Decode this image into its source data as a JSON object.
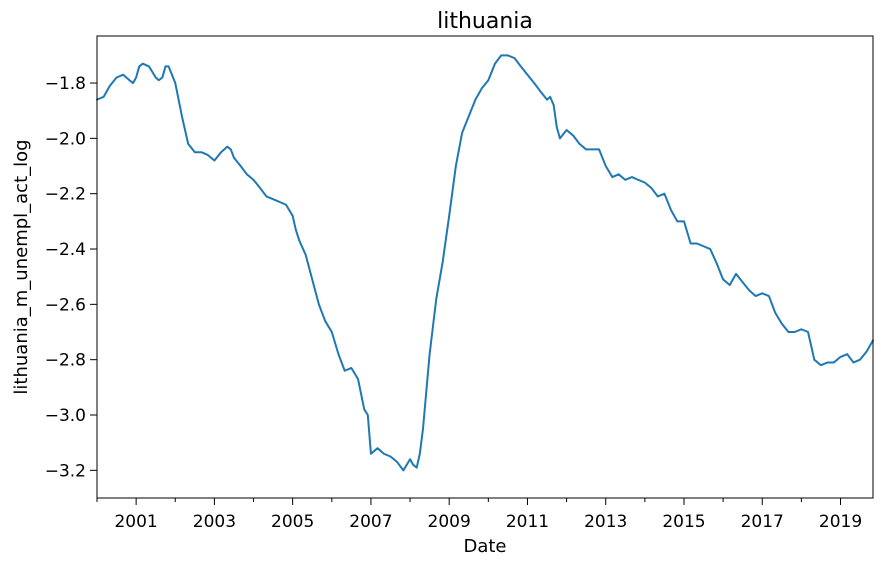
{
  "chart_data": {
    "type": "line",
    "title": "lithuania",
    "xlabel": "Date",
    "ylabel": "lithuania_m_unempl_act_log",
    "xlim": [
      2000.0,
      2019.83
    ],
    "ylim": [
      -3.3,
      -1.63
    ],
    "x_major_ticks": [
      2001,
      2003,
      2005,
      2007,
      2009,
      2011,
      2013,
      2015,
      2017,
      2019
    ],
    "x_minor_ticks": [
      2000,
      2002,
      2004,
      2006,
      2008,
      2010,
      2012,
      2014,
      2016,
      2018
    ],
    "x_tick_labels": [
      "2001",
      "2003",
      "2005",
      "2007",
      "2009",
      "2011",
      "2013",
      "2015",
      "2017",
      "2019"
    ],
    "y_ticks": [
      -3.2,
      -3.0,
      -2.8,
      -2.6,
      -2.4,
      -2.2,
      -2.0,
      -1.8
    ],
    "y_tick_labels": [
      "−3.2",
      "−3.0",
      "−2.8",
      "−2.6",
      "−2.4",
      "−2.2",
      "−2.0",
      "−1.8"
    ],
    "grid": false,
    "line_color": "#1f77b4",
    "series": [
      {
        "x": [
          2000.0,
          2000.17,
          2000.33,
          2000.5,
          2000.67,
          2000.83,
          2000.92,
          2001.0,
          2001.08,
          2001.17,
          2001.33,
          2001.5,
          2001.58,
          2001.67,
          2001.75,
          2001.83,
          2002.0,
          2002.17,
          2002.33,
          2002.5,
          2002.67,
          2002.83,
          2003.0,
          2003.17,
          2003.33,
          2003.42,
          2003.5,
          2003.67,
          2003.83,
          2004.0,
          2004.17,
          2004.33,
          2004.5,
          2004.67,
          2004.83,
          2005.0,
          2005.08,
          2005.17,
          2005.33,
          2005.5,
          2005.67,
          2005.83,
          2006.0,
          2006.17,
          2006.33,
          2006.5,
          2006.67,
          2006.83,
          2006.92,
          2007.0,
          2007.17,
          2007.33,
          2007.5,
          2007.67,
          2007.83,
          2008.0,
          2008.08,
          2008.17,
          2008.25,
          2008.33,
          2008.5,
          2008.67,
          2008.83,
          2009.0,
          2009.17,
          2009.33,
          2009.5,
          2009.67,
          2009.83,
          2010.0,
          2010.17,
          2010.33,
          2010.5,
          2010.67,
          2010.83,
          2011.0,
          2011.17,
          2011.33,
          2011.5,
          2011.58,
          2011.67,
          2011.75,
          2011.83,
          2012.0,
          2012.17,
          2012.33,
          2012.5,
          2012.67,
          2012.83,
          2013.0,
          2013.17,
          2013.33,
          2013.5,
          2013.67,
          2013.83,
          2014.0,
          2014.17,
          2014.33,
          2014.5,
          2014.67,
          2014.83,
          2015.0,
          2015.17,
          2015.33,
          2015.5,
          2015.67,
          2015.83,
          2016.0,
          2016.17,
          2016.33,
          2016.5,
          2016.67,
          2016.83,
          2017.0,
          2017.17,
          2017.33,
          2017.5,
          2017.67,
          2017.83,
          2018.0,
          2018.17,
          2018.33,
          2018.5,
          2018.67,
          2018.83,
          2019.0,
          2019.17,
          2019.33,
          2019.5,
          2019.67,
          2019.83
        ],
        "y": [
          -1.86,
          -1.85,
          -1.81,
          -1.78,
          -1.77,
          -1.79,
          -1.8,
          -1.78,
          -1.74,
          -1.73,
          -1.74,
          -1.78,
          -1.79,
          -1.78,
          -1.74,
          -1.74,
          -1.8,
          -1.92,
          -2.02,
          -2.05,
          -2.05,
          -2.06,
          -2.08,
          -2.05,
          -2.03,
          -2.04,
          -2.07,
          -2.1,
          -2.13,
          -2.15,
          -2.18,
          -2.21,
          -2.22,
          -2.23,
          -2.24,
          -2.28,
          -2.33,
          -2.37,
          -2.42,
          -2.51,
          -2.6,
          -2.66,
          -2.7,
          -2.78,
          -2.84,
          -2.83,
          -2.87,
          -2.98,
          -3.0,
          -3.14,
          -3.12,
          -3.14,
          -3.15,
          -3.17,
          -3.2,
          -3.16,
          -3.18,
          -3.19,
          -3.14,
          -3.05,
          -2.78,
          -2.58,
          -2.45,
          -2.28,
          -2.1,
          -1.98,
          -1.92,
          -1.86,
          -1.82,
          -1.79,
          -1.73,
          -1.7,
          -1.7,
          -1.71,
          -1.74,
          -1.77,
          -1.8,
          -1.83,
          -1.86,
          -1.85,
          -1.88,
          -1.96,
          -2.0,
          -1.97,
          -1.99,
          -2.02,
          -2.04,
          -2.04,
          -2.04,
          -2.1,
          -2.14,
          -2.13,
          -2.15,
          -2.14,
          -2.15,
          -2.16,
          -2.18,
          -2.21,
          -2.2,
          -2.26,
          -2.3,
          -2.3,
          -2.38,
          -2.38,
          -2.39,
          -2.4,
          -2.45,
          -2.51,
          -2.53,
          -2.49,
          -2.52,
          -2.55,
          -2.57,
          -2.56,
          -2.57,
          -2.63,
          -2.67,
          -2.7,
          -2.7,
          -2.69,
          -2.7,
          -2.8,
          -2.82,
          -2.81,
          -2.81,
          -2.79,
          -2.78,
          -2.81,
          -2.8,
          -2.77,
          -2.73
        ]
      }
    ]
  }
}
